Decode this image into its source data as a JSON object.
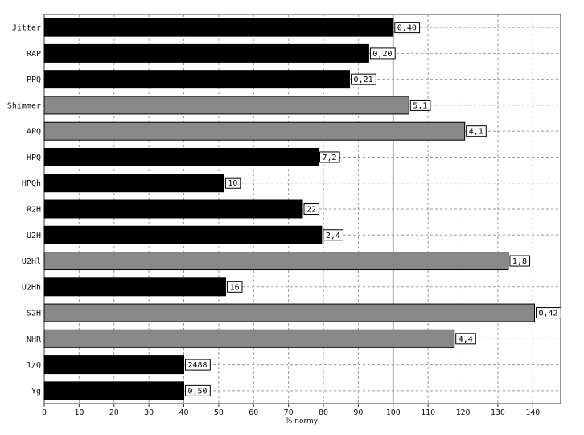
{
  "chart_data": {
    "type": "bar",
    "orientation": "horizontal",
    "xlabel": "% normy",
    "xlim": [
      0,
      148
    ],
    "xticks": [
      0,
      10,
      20,
      30,
      40,
      50,
      60,
      70,
      80,
      90,
      100,
      110,
      120,
      130,
      140
    ],
    "reference_line": 100,
    "grid": true,
    "colors": {
      "normal": "#000000",
      "abnormal": "#888888",
      "reference": "#b0b0b0"
    },
    "categories": [
      "Jitter",
      "RAP",
      "PPQ",
      "Shimmer",
      "APQ",
      "HPQ",
      "HPQh",
      "R2H",
      "U2H",
      "U2Hl",
      "U2Hh",
      "S2H",
      "NHR",
      "1/Q",
      "Yg"
    ],
    "values": [
      100,
      93,
      87.5,
      104.5,
      120.5,
      78.5,
      51.5,
      74,
      79.5,
      133,
      52,
      140.5,
      117.5,
      40,
      40
    ],
    "labels": [
      "0,40",
      "0,20",
      "0,21",
      "5,1",
      "4,1",
      "7,2",
      "10",
      "22",
      "2,4",
      "1,8",
      "16",
      "0,42",
      "4,4",
      "2488",
      "0,50"
    ],
    "status": [
      "normal",
      "normal",
      "normal",
      "abnormal",
      "abnormal",
      "normal",
      "normal",
      "normal",
      "normal",
      "abnormal",
      "normal",
      "abnormal",
      "abnormal",
      "normal",
      "normal"
    ]
  }
}
